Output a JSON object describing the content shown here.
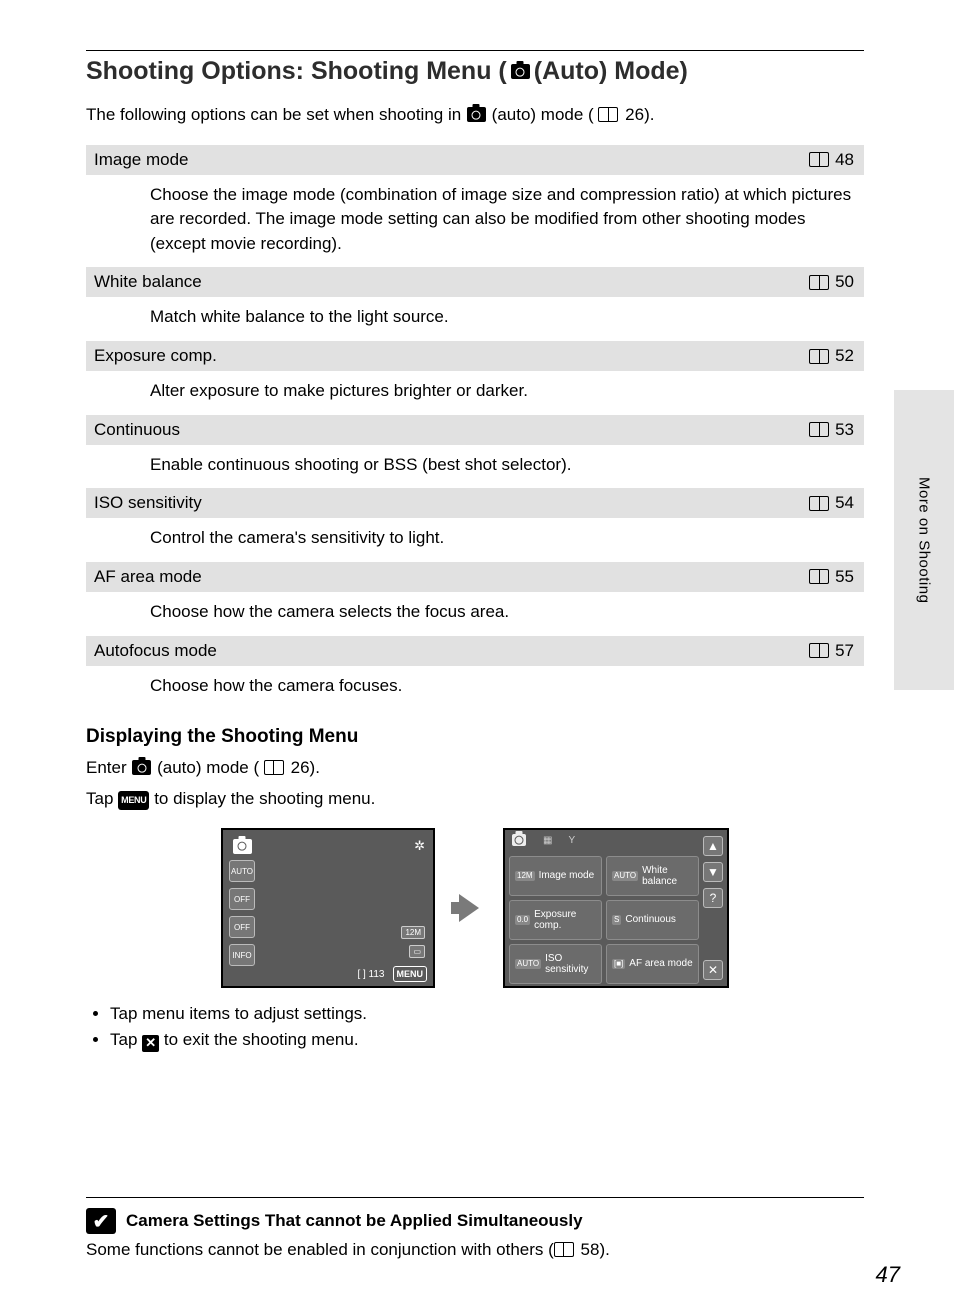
{
  "side_tab": "More on Shooting",
  "heading": {
    "pre": "Shooting Options: Shooting Menu (",
    "post": " (Auto) Mode)"
  },
  "intro": {
    "pre": "The following options can be set when shooting in ",
    "mid": " (auto) mode (",
    "page": "26",
    "post": ")."
  },
  "options": [
    {
      "title": "Image mode",
      "page": "48",
      "desc": "Choose the image mode (combination of image size and compression ratio) at which pictures are recorded. The image mode setting can also be modified from other shooting modes (except movie recording)."
    },
    {
      "title": "White balance",
      "page": "50",
      "desc": "Match white balance to the light source."
    },
    {
      "title": "Exposure comp.",
      "page": "52",
      "desc": "Alter exposure to make pictures brighter or darker."
    },
    {
      "title": "Continuous",
      "page": "53",
      "desc": "Enable continuous shooting or BSS (best shot selector)."
    },
    {
      "title": "ISO sensitivity",
      "page": "54",
      "desc": "Control the camera's sensitivity to light."
    },
    {
      "title": "AF area mode",
      "page": "55",
      "desc": "Choose how the camera selects the focus area."
    },
    {
      "title": "Autofocus mode",
      "page": "57",
      "desc": "Choose how the camera focuses."
    }
  ],
  "subhead": "Displaying the Shooting Menu",
  "enter_line": {
    "pre": "Enter ",
    "mid": " (auto) mode (",
    "page": "26",
    "post": ")."
  },
  "tap_line": {
    "pre": "Tap ",
    "badge": "MENU",
    "post": " to display the shooting menu."
  },
  "lcd1": {
    "side_labels": [
      "AUTO",
      "OFF",
      "OFF",
      "INFO"
    ],
    "top_right_glyph": "✲",
    "right_labels": [
      "12M",
      "▭"
    ],
    "bottom_counter": "[   ] 113",
    "menu_label": "MENU"
  },
  "lcd2": {
    "cells": [
      {
        "tag": "12M",
        "label": "Image mode"
      },
      {
        "tag": "AUTO",
        "label": "White balance"
      },
      {
        "tag": "0.0",
        "label": "Exposure comp."
      },
      {
        "tag": "S",
        "label": "Continuous"
      },
      {
        "tag": "AUTO",
        "label": "ISO sensitivity"
      },
      {
        "tag": "[■]",
        "label": "AF area mode"
      }
    ],
    "rail": [
      "▲",
      "▼",
      "?",
      "✕"
    ]
  },
  "bullets": [
    {
      "text": "Tap menu items to adjust settings."
    },
    {
      "pre": "Tap ",
      "icon": "✕",
      "post": " to exit the shooting menu."
    }
  ],
  "note": {
    "title": "Camera Settings That cannot be Applied Simultaneously",
    "body_pre": "Some functions cannot be enabled in conjunction with others (",
    "page": "58",
    "body_post": ")."
  },
  "page_number": "47",
  "colors": {
    "row_bg": "#e1e1e1",
    "lcd_bg": "#5a5a5a",
    "arrow": "#7a7a7a",
    "side_tab_bg": "#e4e4e4"
  }
}
